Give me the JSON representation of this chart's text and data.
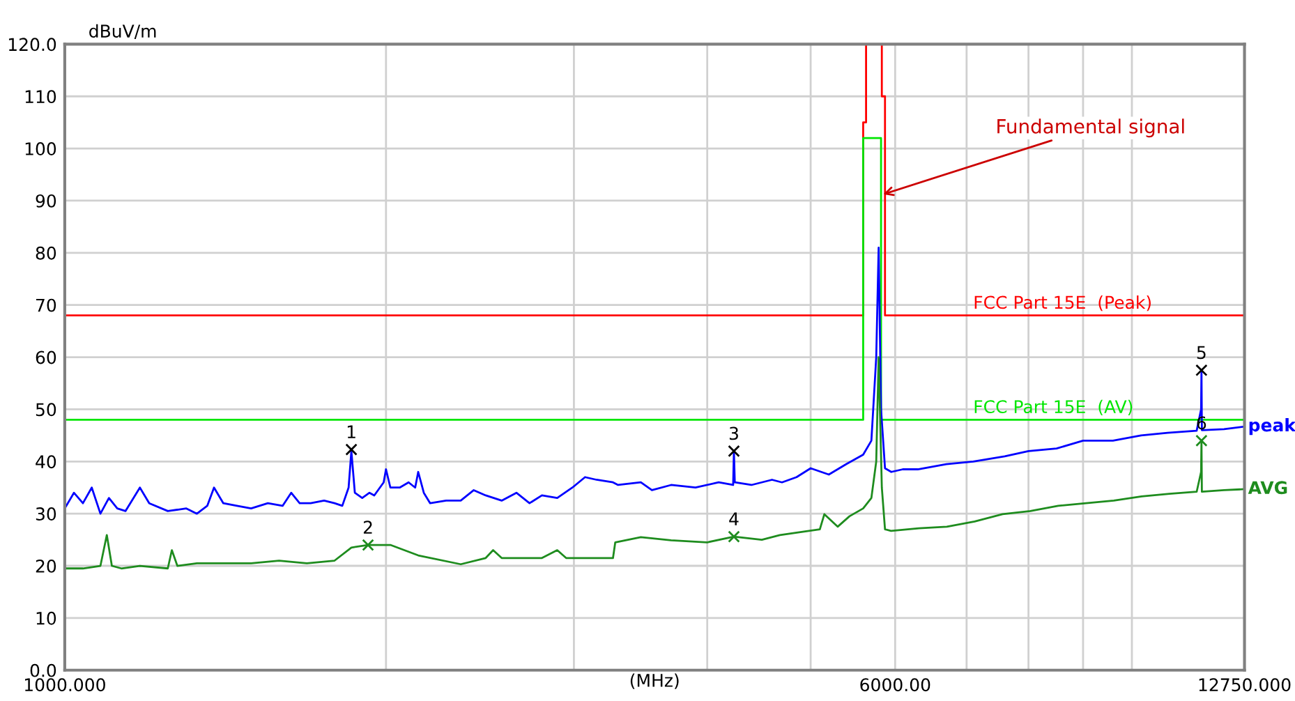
{
  "chart_data": {
    "type": "line",
    "xlabel": "(MHz)",
    "ylabel": "dBuV/m",
    "log": "x",
    "grid": true,
    "legend": false,
    "line_style": "solid",
    "xlim": [
      1000,
      12750
    ],
    "xticks": [
      {
        "value": 1000,
        "label": "1000.000"
      },
      {
        "value": 2000,
        "label": null
      },
      {
        "value": 3000,
        "label": null
      },
      {
        "value": 4000,
        "label": null
      },
      {
        "value": 5000,
        "label": null
      },
      {
        "value": 6000,
        "label": "6000.00"
      },
      {
        "value": 7000,
        "label": null
      },
      {
        "value": 8000,
        "label": null
      },
      {
        "value": 9000,
        "label": null
      },
      {
        "value": 10000,
        "label": null
      },
      {
        "value": 12750,
        "label": "12750.000"
      }
    ],
    "ylim": [
      0,
      120
    ],
    "yticks": [
      {
        "value": 0,
        "label": "0.0"
      },
      10,
      20,
      30,
      40,
      50,
      60,
      70,
      80,
      90,
      100,
      110,
      {
        "value": 120,
        "label": "120.0"
      }
    ],
    "annotations": [
      {
        "text": "Fundamental signal",
        "x": 5800,
        "y": 91
      },
      {
        "text": "1",
        "x": 1856,
        "y": 42.3
      },
      {
        "text": "2",
        "x": 1924,
        "y": 24
      },
      {
        "text": "3",
        "x": 4237,
        "y": 42
      },
      {
        "text": "4",
        "x": 4237,
        "y": 25.6
      },
      {
        "text": "5",
        "x": 11620,
        "y": 57.5
      },
      {
        "text": "6",
        "x": 11620,
        "y": 44
      }
    ],
    "series": [
      {
        "name": "FCC Part 15E  (Peak)",
        "color": "#ff0000",
        "x": [
          1000,
          5600,
          5600,
          5635,
          5635,
          5830,
          5830,
          5870,
          5870,
          12750
        ],
        "values": [
          68,
          68,
          105,
          105,
          120,
          120,
          110,
          110,
          68,
          68
        ]
      },
      {
        "name": "FCC Part 15E  (AV)",
        "color": "#00e600",
        "x": [
          1000,
          5600,
          5600,
          5820,
          5820,
          12750
        ],
        "values": [
          48,
          48,
          102,
          102,
          48,
          48
        ]
      },
      {
        "name": "peak",
        "color": "#0000ff",
        "x": [
          1000,
          1020,
          1040,
          1060,
          1080,
          1100,
          1120,
          1140,
          1176,
          1200,
          1249,
          1300,
          1330,
          1360,
          1380,
          1408,
          1450,
          1495,
          1550,
          1600,
          1630,
          1660,
          1700,
          1750,
          1790,
          1820,
          1845,
          1856,
          1870,
          1900,
          1930,
          1950,
          1990,
          2000,
          2019,
          2060,
          2100,
          2130,
          2144,
          2170,
          2200,
          2277,
          2350,
          2417,
          2480,
          2567,
          2650,
          2726,
          2800,
          2894,
          2990,
          3073,
          3150,
          3264,
          3300,
          3466,
          3550,
          3700,
          3900,
          4100,
          4230,
          4237,
          4245,
          4400,
          4600,
          4700,
          4850,
          5000,
          5200,
          5400,
          5600,
          5700,
          5760,
          5790,
          5820,
          5870,
          5950,
          6100,
          6300,
          6700,
          7100,
          7600,
          8000,
          8500,
          9000,
          9600,
          10200,
          10800,
          11500,
          11610,
          11620,
          11630,
          12200,
          12750
        ],
        "values": [
          31,
          34,
          32,
          35,
          30,
          33,
          31,
          30.5,
          35,
          32,
          30.5,
          31,
          30,
          31.5,
          35,
          32,
          31.5,
          31,
          32,
          31.5,
          34,
          32,
          32,
          32.5,
          32,
          31.5,
          35,
          42,
          34,
          33,
          34,
          33.5,
          36,
          38.5,
          35,
          35,
          36,
          35,
          38,
          34,
          32,
          32.5,
          32.5,
          34.5,
          33.5,
          32.5,
          34,
          32,
          33.5,
          33,
          35,
          37,
          36.5,
          36,
          35.5,
          36,
          34.5,
          35.5,
          35,
          36,
          35.5,
          42,
          36,
          35.5,
          36.5,
          36,
          37,
          38.7,
          37.5,
          39.5,
          41.3,
          44,
          60,
          81,
          50,
          38.7,
          38,
          38.5,
          38.5,
          39.5,
          40,
          41,
          42,
          42.5,
          44,
          44,
          45,
          45.5,
          45.9,
          50,
          57.5,
          46,
          46.2,
          46.7
        ]
      },
      {
        "name": "AVG",
        "color": "#1e8c1e",
        "x": [
          1000,
          1040,
          1080,
          1095,
          1107,
          1130,
          1176,
          1249,
          1260,
          1275,
          1330,
          1400,
          1495,
          1588,
          1686,
          1790,
          1856,
          1924,
          2019,
          2144,
          2350,
          2480,
          2520,
          2567,
          2800,
          2894,
          2950,
          2990,
          3100,
          3200,
          3264,
          3280,
          3466,
          3700,
          4000,
          4237,
          4500,
          4679,
          5100,
          5150,
          5300,
          5437,
          5600,
          5700,
          5760,
          5790,
          5830,
          5870,
          5947,
          6317,
          6708,
          7123,
          7564,
          8033,
          8530,
          9057,
          9617,
          10212,
          10844,
          11500,
          11610,
          11620,
          11630,
          12200,
          12750
        ],
        "values": [
          19.5,
          19.5,
          20,
          25.9,
          20,
          19.5,
          20,
          19.5,
          23,
          20,
          20.5,
          20.5,
          20.5,
          21,
          20.5,
          21,
          23.5,
          24,
          24,
          22,
          20.3,
          21.5,
          23,
          21.5,
          21.5,
          23,
          21.5,
          21.5,
          21.5,
          21.5,
          21.5,
          24.5,
          25.5,
          24.9,
          24.5,
          25.6,
          25,
          25.9,
          27,
          29.9,
          27.5,
          29.5,
          31,
          33,
          40,
          60,
          35,
          27,
          26.7,
          27.2,
          27.5,
          28.5,
          29.9,
          30.5,
          31.5,
          32,
          32.5,
          33.3,
          33.8,
          34.2,
          38,
          44,
          34.2,
          34.5,
          34.7
        ]
      },
      {
        "type": "scatter",
        "marker": "cross",
        "x": [
          1856,
          1924,
          4237,
          4237,
          11620,
          11620
        ],
        "values": [
          42.3,
          24,
          42,
          25.6,
          57.5,
          44
        ],
        "colors": [
          "#000000",
          "#1e8c1e",
          "#000000",
          "#1e8c1e",
          "#000000",
          "#1e8c1e"
        ]
      }
    ]
  }
}
